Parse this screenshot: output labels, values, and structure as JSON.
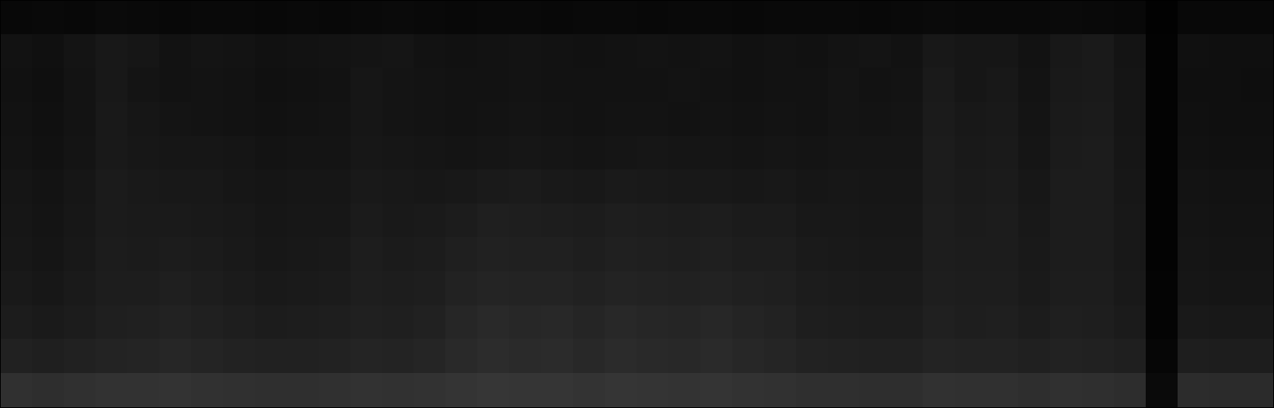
{
  "chart_data": {
    "type": "heatmap",
    "tick_labels": false,
    "cells": [
      [
        8,
        9,
        8,
        10,
        9,
        8,
        9,
        9,
        8,
        9,
        8,
        9,
        10,
        9,
        8,
        9,
        9,
        8,
        9,
        9,
        8,
        9,
        9,
        8,
        9,
        9,
        9,
        8,
        9,
        10,
        9,
        9,
        9,
        10,
        9,
        8,
        2,
        8,
        8,
        8
      ],
      [
        18,
        16,
        20,
        24,
        22,
        18,
        20,
        19,
        17,
        18,
        19,
        20,
        21,
        18,
        17,
        18,
        19,
        18,
        17,
        18,
        19,
        18,
        19,
        17,
        18,
        17,
        19,
        20,
        18,
        24,
        22,
        22,
        18,
        24,
        26,
        20,
        3,
        16,
        15,
        15
      ],
      [
        17,
        15,
        19,
        24,
        20,
        18,
        19,
        18,
        16,
        17,
        18,
        22,
        20,
        19,
        18,
        18,
        19,
        18,
        18,
        18,
        18,
        19,
        18,
        17,
        18,
        18,
        20,
        18,
        19,
        26,
        22,
        24,
        19,
        25,
        26,
        21,
        3,
        15,
        15,
        14
      ],
      [
        18,
        16,
        19,
        25,
        22,
        20,
        19,
        18,
        17,
        18,
        19,
        22,
        20,
        19,
        18,
        19,
        20,
        19,
        18,
        19,
        19,
        18,
        19,
        18,
        19,
        18,
        20,
        19,
        20,
        27,
        24,
        25,
        20,
        26,
        27,
        21,
        3,
        16,
        15,
        15
      ],
      [
        19,
        17,
        20,
        25,
        23,
        22,
        22,
        21,
        19,
        20,
        20,
        23,
        22,
        21,
        20,
        21,
        22,
        21,
        20,
        21,
        22,
        21,
        21,
        20,
        21,
        20,
        21,
        21,
        21,
        28,
        25,
        26,
        21,
        27,
        28,
        22,
        3,
        17,
        16,
        16
      ],
      [
        21,
        19,
        22,
        27,
        25,
        24,
        24,
        22,
        21,
        22,
        22,
        25,
        24,
        23,
        24,
        26,
        27,
        25,
        24,
        26,
        25,
        24,
        24,
        23,
        24,
        22,
        23,
        22,
        22,
        28,
        26,
        27,
        23,
        28,
        28,
        23,
        3,
        19,
        18,
        18
      ],
      [
        22,
        20,
        23,
        27,
        26,
        26,
        25,
        24,
        22,
        23,
        23,
        27,
        25,
        26,
        28,
        31,
        30,
        29,
        28,
        30,
        29,
        28,
        29,
        27,
        27,
        24,
        24,
        23,
        23,
        29,
        27,
        28,
        24,
        28,
        28,
        24,
        3,
        20,
        19,
        19
      ],
      [
        23,
        21,
        24,
        28,
        27,
        28,
        27,
        25,
        23,
        24,
        25,
        29,
        27,
        28,
        31,
        33,
        32,
        32,
        30,
        32,
        31,
        30,
        31,
        29,
        29,
        26,
        25,
        24,
        24,
        29,
        28,
        28,
        25,
        28,
        28,
        24,
        3,
        21,
        20,
        20
      ],
      [
        25,
        23,
        26,
        29,
        29,
        31,
        29,
        27,
        25,
        26,
        27,
        30,
        29,
        30,
        34,
        36,
        35,
        35,
        33,
        35,
        34,
        33,
        34,
        32,
        31,
        28,
        27,
        26,
        26,
        30,
        29,
        29,
        26,
        29,
        29,
        25,
        4,
        22,
        21,
        21
      ],
      [
        28,
        26,
        28,
        31,
        32,
        34,
        32,
        30,
        28,
        29,
        30,
        32,
        31,
        33,
        38,
        41,
        39,
        40,
        37,
        40,
        38,
        37,
        39,
        36,
        34,
        30,
        29,
        28,
        28,
        32,
        30,
        31,
        28,
        31,
        30,
        27,
        4,
        25,
        24,
        24
      ],
      [
        33,
        31,
        33,
        35,
        36,
        38,
        36,
        34,
        33,
        33,
        34,
        36,
        35,
        37,
        41,
        44,
        42,
        43,
        40,
        43,
        41,
        40,
        42,
        39,
        37,
        34,
        33,
        32,
        32,
        35,
        34,
        34,
        32,
        34,
        33,
        31,
        6,
        30,
        29,
        29
      ],
      [
        48,
        46,
        48,
        50,
        50,
        51,
        49,
        48,
        47,
        47,
        48,
        50,
        49,
        50,
        52,
        54,
        53,
        53,
        51,
        53,
        52,
        51,
        52,
        50,
        49,
        47,
        47,
        46,
        46,
        49,
        48,
        48,
        46,
        48,
        47,
        45,
        10,
        44,
        43,
        43
      ]
    ]
  }
}
